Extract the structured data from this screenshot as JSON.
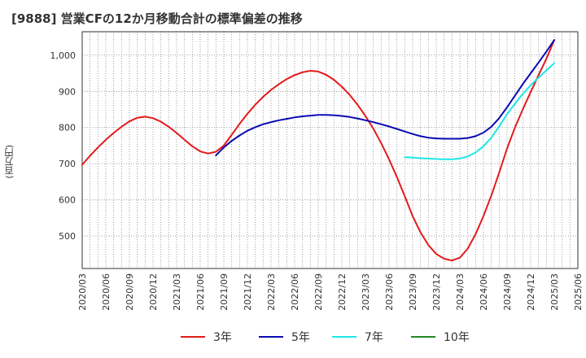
{
  "title": "[9888]  営業CFの12か月移動合計の標準偏差の推移",
  "chart_data": {
    "type": "line",
    "title": "[9888]  営業CFの12か月移動合計の標準偏差の推移",
    "ylabel": "(百万円)",
    "xlabel": "",
    "ylim": [
      410,
      1065
    ],
    "yticks": [
      500,
      600,
      700,
      800,
      900,
      1000
    ],
    "ytick_labels": [
      "500",
      "600",
      "700",
      "800",
      "900",
      "1,000"
    ],
    "xticks": [
      "2020/03",
      "2020/06",
      "2020/09",
      "2020/12",
      "2021/03",
      "2021/06",
      "2021/09",
      "2021/12",
      "2022/03",
      "2022/06",
      "2022/09",
      "2022/12",
      "2023/03",
      "2023/06",
      "2023/09",
      "2023/12",
      "2024/03",
      "2024/06",
      "2024/09",
      "2024/12",
      "2025/03",
      "2025/06"
    ],
    "grid": true,
    "legend_position": "bottom",
    "series": [
      {
        "name": "3年",
        "color": "#e31a1c",
        "points": [
          [
            "2020/03",
            697
          ],
          [
            "2020/04",
            722
          ],
          [
            "2020/05",
            745
          ],
          [
            "2020/06",
            766
          ],
          [
            "2020/07",
            785
          ],
          [
            "2020/08",
            802
          ],
          [
            "2020/09",
            817
          ],
          [
            "2020/10",
            827
          ],
          [
            "2020/11",
            830
          ],
          [
            "2020/12",
            826
          ],
          [
            "2021/01",
            816
          ],
          [
            "2021/02",
            802
          ],
          [
            "2021/03",
            785
          ],
          [
            "2021/04",
            766
          ],
          [
            "2021/05",
            748
          ],
          [
            "2021/06",
            734
          ],
          [
            "2021/07",
            728
          ],
          [
            "2021/08",
            733
          ],
          [
            "2021/09",
            750
          ],
          [
            "2021/10",
            780
          ],
          [
            "2021/11",
            810
          ],
          [
            "2021/12",
            838
          ],
          [
            "2022/01",
            863
          ],
          [
            "2022/02",
            885
          ],
          [
            "2022/03",
            904
          ],
          [
            "2022/04",
            920
          ],
          [
            "2022/05",
            934
          ],
          [
            "2022/06",
            945
          ],
          [
            "2022/07",
            953
          ],
          [
            "2022/08",
            957
          ],
          [
            "2022/09",
            955
          ],
          [
            "2022/10",
            946
          ],
          [
            "2022/11",
            932
          ],
          [
            "2022/12",
            913
          ],
          [
            "2023/01",
            890
          ],
          [
            "2023/02",
            863
          ],
          [
            "2023/03",
            832
          ],
          [
            "2023/04",
            797
          ],
          [
            "2023/05",
            757
          ],
          [
            "2023/06",
            712
          ],
          [
            "2023/07",
            663
          ],
          [
            "2023/08",
            610
          ],
          [
            "2023/09",
            555
          ],
          [
            "2023/10",
            510
          ],
          [
            "2023/11",
            475
          ],
          [
            "2023/12",
            450
          ],
          [
            "2024/01",
            437
          ],
          [
            "2024/02",
            432
          ],
          [
            "2024/03",
            440
          ],
          [
            "2024/04",
            465
          ],
          [
            "2024/05",
            505
          ],
          [
            "2024/06",
            555
          ],
          [
            "2024/07",
            612
          ],
          [
            "2024/08",
            675
          ],
          [
            "2024/09",
            742
          ],
          [
            "2024/10",
            800
          ],
          [
            "2024/11",
            850
          ],
          [
            "2024/12",
            898
          ],
          [
            "2025/01",
            945
          ],
          [
            "2025/02",
            990
          ],
          [
            "2025/03",
            1042
          ]
        ]
      },
      {
        "name": "5年",
        "color": "#0a0ab4",
        "points": [
          [
            "2021/08",
            723
          ],
          [
            "2021/09",
            745
          ],
          [
            "2021/10",
            763
          ],
          [
            "2021/11",
            778
          ],
          [
            "2021/12",
            791
          ],
          [
            "2022/01",
            801
          ],
          [
            "2022/02",
            809
          ],
          [
            "2022/03",
            815
          ],
          [
            "2022/04",
            820
          ],
          [
            "2022/05",
            824
          ],
          [
            "2022/06",
            828
          ],
          [
            "2022/07",
            831
          ],
          [
            "2022/08",
            833
          ],
          [
            "2022/09",
            835
          ],
          [
            "2022/10",
            835
          ],
          [
            "2022/11",
            834
          ],
          [
            "2022/12",
            832
          ],
          [
            "2023/01",
            829
          ],
          [
            "2023/02",
            825
          ],
          [
            "2023/03",
            820
          ],
          [
            "2023/04",
            815
          ],
          [
            "2023/05",
            809
          ],
          [
            "2023/06",
            803
          ],
          [
            "2023/07",
            796
          ],
          [
            "2023/08",
            789
          ],
          [
            "2023/09",
            782
          ],
          [
            "2023/10",
            776
          ],
          [
            "2023/11",
            772
          ],
          [
            "2023/12",
            770
          ],
          [
            "2024/01",
            769
          ],
          [
            "2024/02",
            769
          ],
          [
            "2024/03",
            769
          ],
          [
            "2024/04",
            771
          ],
          [
            "2024/05",
            776
          ],
          [
            "2024/06",
            786
          ],
          [
            "2024/07",
            802
          ],
          [
            "2024/08",
            826
          ],
          [
            "2024/09",
            856
          ],
          [
            "2024/10",
            888
          ],
          [
            "2024/11",
            920
          ],
          [
            "2024/12",
            950
          ],
          [
            "2025/01",
            980
          ],
          [
            "2025/02",
            1010
          ],
          [
            "2025/03",
            1042
          ]
        ]
      },
      {
        "name": "7年",
        "color": "#1ee6e6",
        "points": [
          [
            "2023/08",
            718
          ],
          [
            "2023/09",
            717
          ],
          [
            "2023/10",
            715
          ],
          [
            "2023/11",
            714
          ],
          [
            "2023/12",
            713
          ],
          [
            "2024/01",
            712
          ],
          [
            "2024/02",
            712
          ],
          [
            "2024/03",
            714
          ],
          [
            "2024/04",
            720
          ],
          [
            "2024/05",
            731
          ],
          [
            "2024/06",
            748
          ],
          [
            "2024/07",
            772
          ],
          [
            "2024/08",
            803
          ],
          [
            "2024/09",
            837
          ],
          [
            "2024/10",
            866
          ],
          [
            "2024/11",
            893
          ],
          [
            "2024/12",
            917
          ],
          [
            "2025/01",
            938
          ],
          [
            "2025/02",
            958
          ],
          [
            "2025/03",
            978
          ]
        ]
      },
      {
        "name": "10年",
        "color": "#228b22",
        "points": []
      }
    ]
  }
}
